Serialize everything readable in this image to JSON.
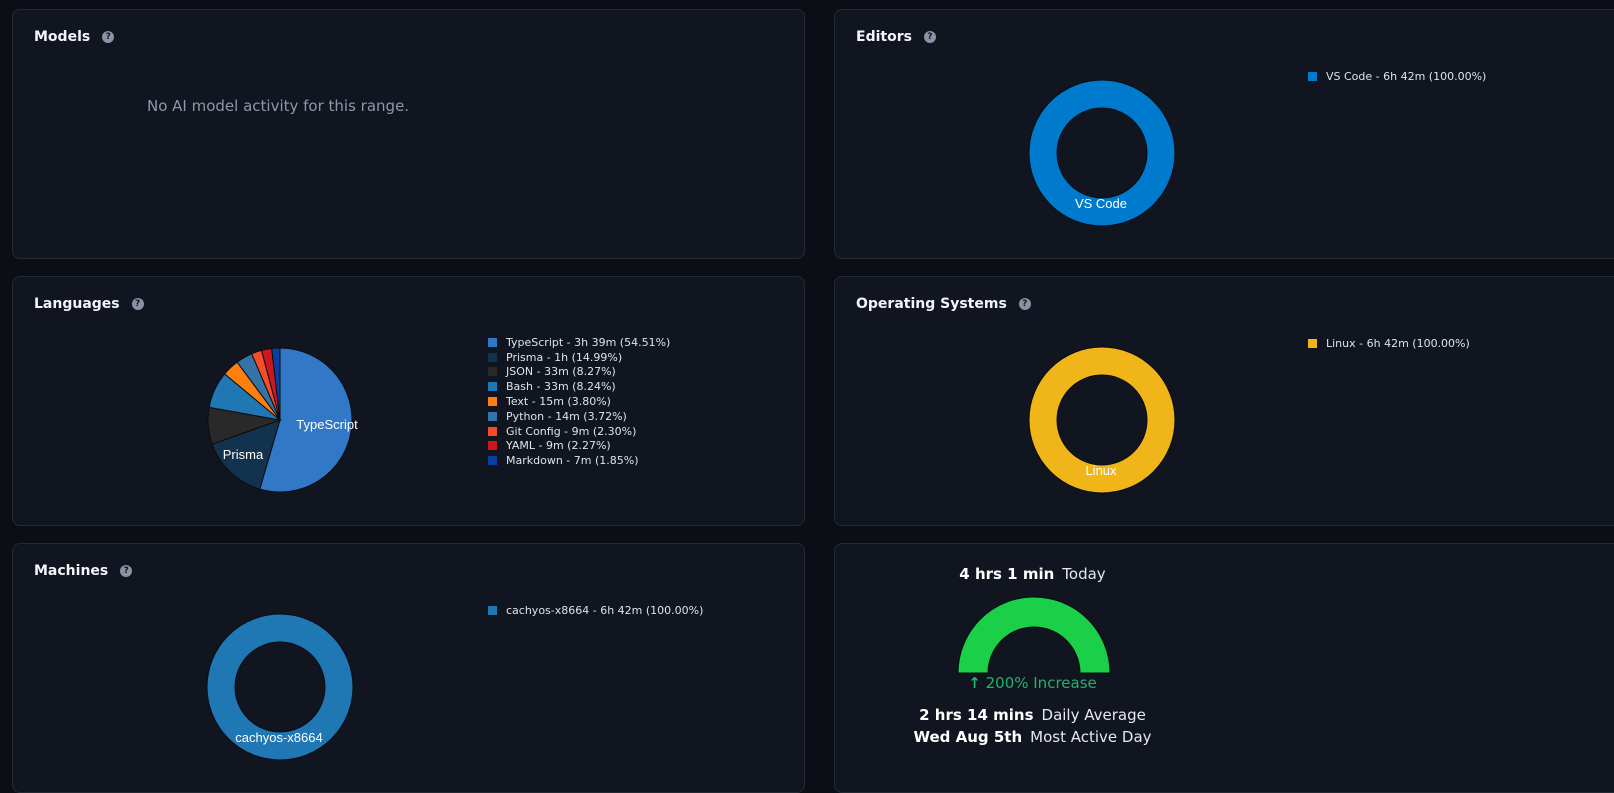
{
  "colors": {
    "typescript": "#3178c6",
    "prisma": "#12324e",
    "json": "#292929",
    "bash": "#1f77b4",
    "text": "#ff7f0e",
    "python": "#3572a5",
    "git_config": "#f44d27",
    "yaml": "#cb171e",
    "markdown": "#083fa1",
    "vscode": "#007acc",
    "linux": "#f0b518",
    "machine": "#1f77b4",
    "gauge": "#1ccf48"
  },
  "models": {
    "title": "Models",
    "empty_message": "No AI model activity for this range."
  },
  "editors": {
    "title": "Editors",
    "legend": [
      "VS Code - 6h 42m (100.00%)"
    ],
    "chart_label": "VS Code"
  },
  "languages": {
    "title": "Languages",
    "legend": [
      "TypeScript - 3h 39m (54.51%)",
      "Prisma - 1h (14.99%)",
      "JSON - 33m (8.27%)",
      "Bash - 33m (8.24%)",
      "Text - 15m (3.80%)",
      "Python - 14m (3.72%)",
      "Git Config - 9m (2.30%)",
      "YAML - 9m (2.27%)",
      "Markdown - 7m (1.85%)"
    ],
    "slice_labels": {
      "typescript": "TypeScript",
      "prisma": "Prisma"
    }
  },
  "operating_systems": {
    "title": "Operating Systems",
    "legend": [
      "Linux - 6h 42m (100.00%)"
    ],
    "chart_label": "Linux"
  },
  "machines": {
    "title": "Machines",
    "legend": [
      "cachyos-x8664 - 6h 42m (100.00%)"
    ],
    "chart_label": "cachyos-x8664"
  },
  "summary": {
    "today_value": "4 hrs 1 min",
    "today_label": "Today",
    "increase": "200% Increase",
    "daily_avg_value": "2 hrs 14 mins",
    "daily_avg_label": "Daily Average",
    "most_active_value": "Wed Aug 5th",
    "most_active_label": "Most Active Day",
    "gauge_fraction": 1.0
  },
  "chart_data": [
    {
      "type": "pie",
      "categories": [
        "TypeScript",
        "Prisma",
        "JSON",
        "Bash",
        "Text",
        "Python",
        "Git Config",
        "YAML",
        "Markdown"
      ],
      "values": [
        54.51,
        14.99,
        8.27,
        8.24,
        3.8,
        3.72,
        2.3,
        2.27,
        1.85
      ],
      "legend_position": "right"
    },
    {
      "type": "pie",
      "categories": [
        "VS Code"
      ],
      "values": [
        100.0
      ],
      "legend_position": "right"
    },
    {
      "type": "pie",
      "categories": [
        "Linux"
      ],
      "values": [
        100.0
      ],
      "legend_position": "right"
    },
    {
      "type": "pie",
      "categories": [
        "cachyos-x8664"
      ],
      "values": [
        100.0
      ],
      "legend_position": "right"
    }
  ]
}
